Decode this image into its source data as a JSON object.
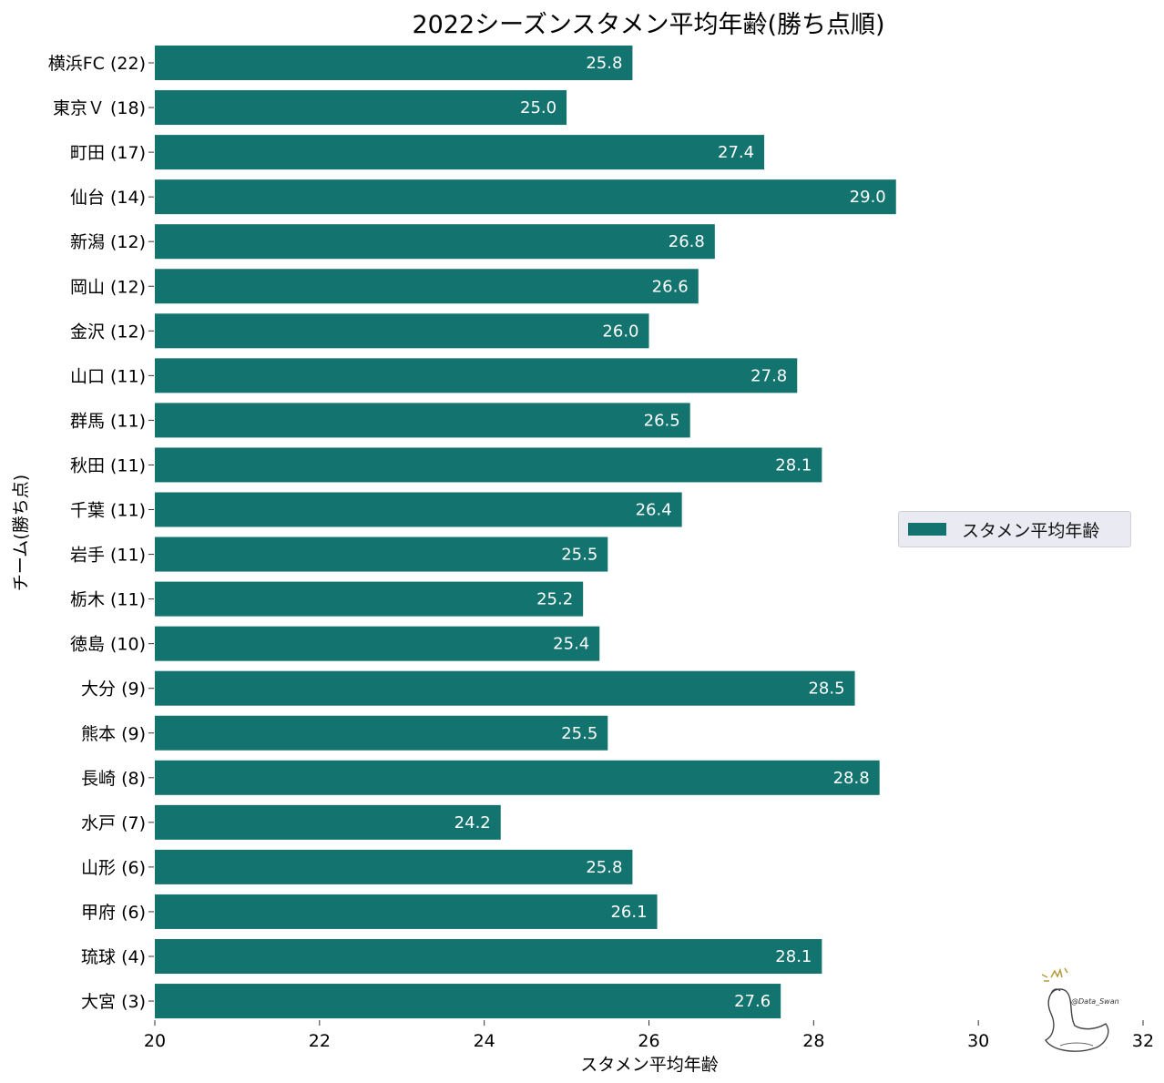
{
  "colors": {
    "bar": "#12736f",
    "bar_label": "#ffffff",
    "legend_bg": "#eaeaf2"
  },
  "chart_data": {
    "type": "bar",
    "orientation": "horizontal",
    "title": "2022シーズンスタメン平均年齢(勝ち点順)",
    "xlabel": "スタメン平均年齢",
    "ylabel": "チーム(勝ち点)",
    "xlim": [
      20,
      32
    ],
    "xticks": [
      "20",
      "22",
      "24",
      "26",
      "28",
      "30",
      "32"
    ],
    "grid": false,
    "legend_position": "center-right",
    "categories": [
      "横浜FC (22)",
      "東京Ｖ (18)",
      "町田 (17)",
      "仙台 (14)",
      "新潟 (12)",
      "岡山 (12)",
      "金沢 (12)",
      "山口 (11)",
      "群馬 (11)",
      "秋田 (11)",
      "千葉 (11)",
      "岩手 (11)",
      "栃木 (11)",
      "徳島 (10)",
      "大分 (9)",
      "熊本 (9)",
      "長崎 (8)",
      "水戸 (7)",
      "山形 (6)",
      "甲府 (6)",
      "琉球 (4)",
      "大宮 (3)"
    ],
    "series": [
      {
        "name": "スタメン平均年齢",
        "values": [
          25.8,
          25.0,
          27.4,
          29.0,
          26.8,
          26.6,
          26.0,
          27.8,
          26.5,
          28.1,
          26.4,
          25.5,
          25.2,
          25.4,
          28.5,
          25.5,
          28.8,
          24.2,
          25.8,
          26.1,
          28.1,
          27.6
        ],
        "labels": [
          "25.8",
          "25.0",
          "27.4",
          "29.0",
          "26.8",
          "26.6",
          "26.0",
          "27.8",
          "26.5",
          "28.1",
          "26.4",
          "25.5",
          "25.2",
          "25.4",
          "28.5",
          "25.5",
          "28.8",
          "24.2",
          "25.8",
          "26.1",
          "28.1",
          "27.6"
        ]
      }
    ]
  },
  "watermark": {
    "text": "@Data_Swan",
    "icon": "swan-logo-icon"
  }
}
